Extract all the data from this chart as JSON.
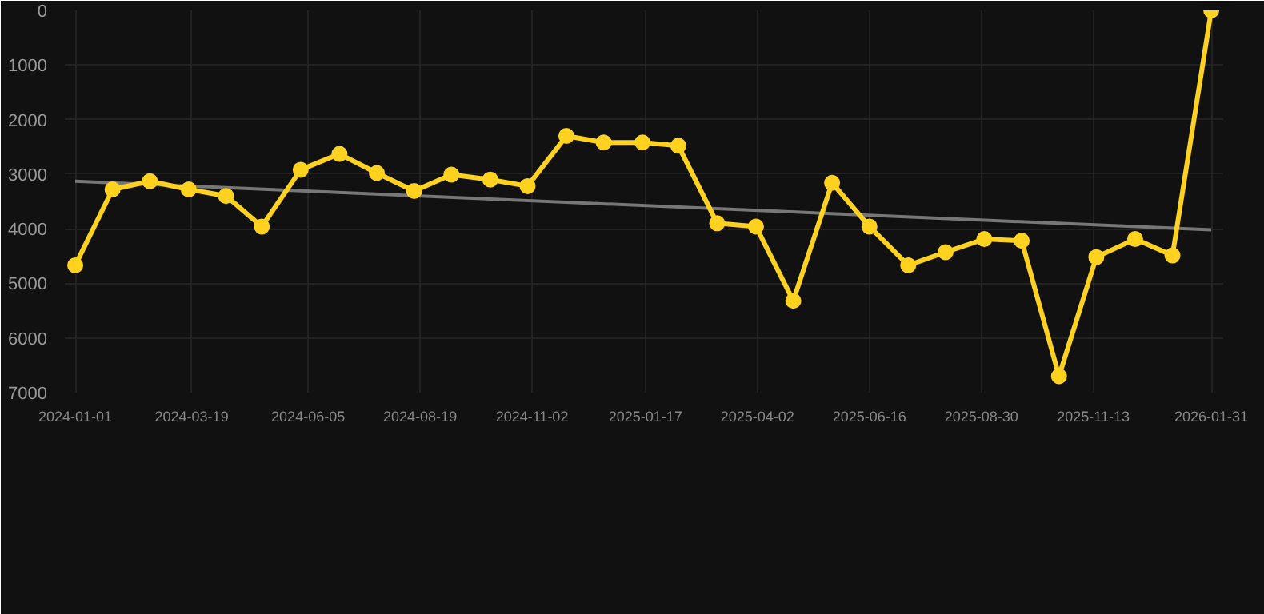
{
  "chart_data": {
    "type": "line",
    "x": [
      "2024-01-01",
      "2024-01-26",
      "2024-02-20",
      "2024-03-17",
      "2024-04-11",
      "2024-05-05",
      "2024-05-31",
      "2024-06-26",
      "2024-07-21",
      "2024-08-15",
      "2024-09-09",
      "2024-10-05",
      "2024-10-30",
      "2024-11-25",
      "2024-12-20",
      "2025-01-15",
      "2025-02-08",
      "2025-03-06",
      "2025-04-01",
      "2025-04-26",
      "2025-05-22",
      "2025-06-16",
      "2025-07-12",
      "2025-08-06",
      "2025-09-01",
      "2025-09-26",
      "2025-10-21",
      "2025-11-15",
      "2025-12-11",
      "2026-01-05",
      "2026-01-31"
    ],
    "series": [
      {
        "color": "#ffd21f",
        "marker": "circle",
        "values": [
          4670,
          3280,
          3130,
          3280,
          3400,
          3960,
          2920,
          2630,
          2980,
          3310,
          3010,
          3100,
          3220,
          2300,
          2420,
          2420,
          2480,
          3900,
          3960,
          5320,
          3160,
          3960,
          4670,
          4430,
          4190,
          4220,
          6700,
          4520,
          4190,
          4490,
          0
        ]
      },
      {
        "type": "line",
        "color": "#777777",
        "marker": "none",
        "x": [
          "2024-01-01",
          "2026-01-31"
        ],
        "values": [
          3130,
          4020
        ]
      }
    ],
    "ylim": [
      7000,
      0
    ],
    "yticks": [
      0,
      1000,
      2000,
      3000,
      4000,
      5000,
      6000,
      7000
    ],
    "xlim": [
      "2023-12-25",
      "2026-02-08"
    ],
    "xticks": [
      {
        "value": "2024-01-01",
        "label": "2024-01-01"
      },
      {
        "value": "2024-03-19",
        "label": "2024-03-19"
      },
      {
        "value": "2024-06-05",
        "label": "2024-06-05"
      },
      {
        "value": "2024-08-19",
        "label": "2024-08-19"
      },
      {
        "value": "2024-11-02",
        "label": "2024-11-02"
      },
      {
        "value": "2025-01-17",
        "label": "2025-01-17"
      },
      {
        "value": "2025-04-02",
        "label": "2025-04-02"
      },
      {
        "value": "2025-06-16",
        "label": "2025-06-16"
      },
      {
        "value": "2025-08-30",
        "label": "2025-08-30"
      },
      {
        "value": "2025-11-13",
        "label": "2025-11-13"
      },
      {
        "value": "2026-01-31",
        "label": "2026-01-31"
      }
    ],
    "grid": true
  }
}
